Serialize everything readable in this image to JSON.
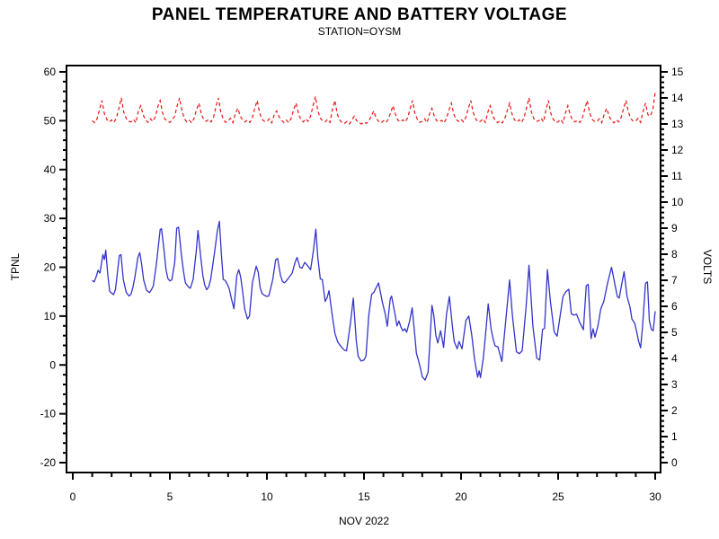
{
  "chart_data": {
    "type": "line",
    "title": "PANEL TEMPERATURE AND BATTERY VOLTAGE",
    "subtitle": "STATION=OYSM",
    "grid": false,
    "legend": "none",
    "frame_color": "#000000",
    "x_axis": {
      "label": "NOV 2022",
      "min": 0,
      "max": 30,
      "major_tick_step": 5,
      "minor_tick_step": 1,
      "tick_labels": [
        "0",
        "5",
        "10",
        "15",
        "20",
        "25",
        "30"
      ]
    },
    "left_axis": {
      "label": "TPNL",
      "min": -20,
      "max": 60,
      "major_tick_step": 10,
      "minor_tick_step": 2,
      "tick_labels": [
        "-20",
        "-10",
        "0",
        "10",
        "20",
        "30",
        "40",
        "50",
        "60"
      ]
    },
    "right_axis": {
      "label": "VOLTS",
      "min": 0,
      "max": 15,
      "major_tick_step": 1,
      "minor_tick_step": 0.2,
      "tick_labels": [
        "0",
        "1",
        "2",
        "3",
        "4",
        "5",
        "6",
        "7",
        "8",
        "9",
        "10",
        "11",
        "12",
        "13",
        "14",
        "15"
      ]
    },
    "series": [
      {
        "name": "panel-temperature",
        "axis": "left",
        "color": "#3333cc",
        "style": "solid",
        "points": [
          [
            1.0,
            17.3
          ],
          [
            1.1,
            17.0
          ],
          [
            1.2,
            18.0
          ],
          [
            1.3,
            19.4
          ],
          [
            1.4,
            18.8
          ],
          [
            1.55,
            22.6
          ],
          [
            1.63,
            21.6
          ],
          [
            1.7,
            23.5
          ],
          [
            1.8,
            18.5
          ],
          [
            1.9,
            15.1
          ],
          [
            2.0,
            14.7
          ],
          [
            2.1,
            14.4
          ],
          [
            2.2,
            15.5
          ],
          [
            2.3,
            19.0
          ],
          [
            2.4,
            22.4
          ],
          [
            2.48,
            22.6
          ],
          [
            2.6,
            17.5
          ],
          [
            2.75,
            14.9
          ],
          [
            2.9,
            14.1
          ],
          [
            3.0,
            14.5
          ],
          [
            3.1,
            16.0
          ],
          [
            3.2,
            18.0
          ],
          [
            3.35,
            22.0
          ],
          [
            3.45,
            23.0
          ],
          [
            3.55,
            20.5
          ],
          [
            3.65,
            17.4
          ],
          [
            3.8,
            15.3
          ],
          [
            3.95,
            14.8
          ],
          [
            4.05,
            15.4
          ],
          [
            4.15,
            16.2
          ],
          [
            4.3,
            20.5
          ],
          [
            4.4,
            24.0
          ],
          [
            4.5,
            27.7
          ],
          [
            4.57,
            27.9
          ],
          [
            4.7,
            23.5
          ],
          [
            4.8,
            19.5
          ],
          [
            4.9,
            17.7
          ],
          [
            5.0,
            17.2
          ],
          [
            5.1,
            17.4
          ],
          [
            5.25,
            21.0
          ],
          [
            5.35,
            28.0
          ],
          [
            5.45,
            28.2
          ],
          [
            5.6,
            22.3
          ],
          [
            5.7,
            19.2
          ],
          [
            5.8,
            16.8
          ],
          [
            5.95,
            16.0
          ],
          [
            6.05,
            15.7
          ],
          [
            6.2,
            17.5
          ],
          [
            6.35,
            23.0
          ],
          [
            6.45,
            27.5
          ],
          [
            6.6,
            21.7
          ],
          [
            6.7,
            18.3
          ],
          [
            6.8,
            16.3
          ],
          [
            6.9,
            15.4
          ],
          [
            7.0,
            16.0
          ],
          [
            7.1,
            17.5
          ],
          [
            7.3,
            23.0
          ],
          [
            7.45,
            27.5
          ],
          [
            7.55,
            29.4
          ],
          [
            7.65,
            23.0
          ],
          [
            7.75,
            17.5
          ],
          [
            7.85,
            17.3
          ],
          [
            7.95,
            16.6
          ],
          [
            8.05,
            15.7
          ],
          [
            8.2,
            13.1
          ],
          [
            8.3,
            11.5
          ],
          [
            8.45,
            18.3
          ],
          [
            8.55,
            19.5
          ],
          [
            8.65,
            18.0
          ],
          [
            8.75,
            15.0
          ],
          [
            8.85,
            11.5
          ],
          [
            9.0,
            9.4
          ],
          [
            9.1,
            10.0
          ],
          [
            9.25,
            16.8
          ],
          [
            9.45,
            20.2
          ],
          [
            9.55,
            19.0
          ],
          [
            9.65,
            15.9
          ],
          [
            9.75,
            14.6
          ],
          [
            9.85,
            14.3
          ],
          [
            10.0,
            14.0
          ],
          [
            10.1,
            14.2
          ],
          [
            10.3,
            17.5
          ],
          [
            10.45,
            21.5
          ],
          [
            10.55,
            21.8
          ],
          [
            10.7,
            18.3
          ],
          [
            10.8,
            17.1
          ],
          [
            10.9,
            16.8
          ],
          [
            11.0,
            17.2
          ],
          [
            11.15,
            18.0
          ],
          [
            11.3,
            18.8
          ],
          [
            11.45,
            21.0
          ],
          [
            11.55,
            22.0
          ],
          [
            11.7,
            20.0
          ],
          [
            11.8,
            19.8
          ],
          [
            11.95,
            21.0
          ],
          [
            12.1,
            20.3
          ],
          [
            12.25,
            19.5
          ],
          [
            12.4,
            23.5
          ],
          [
            12.52,
            27.8
          ],
          [
            12.62,
            22.0
          ],
          [
            12.75,
            17.6
          ],
          [
            12.85,
            17.5
          ],
          [
            13.0,
            13.0
          ],
          [
            13.1,
            13.8
          ],
          [
            13.2,
            15.2
          ],
          [
            13.35,
            10.5
          ],
          [
            13.5,
            6.5
          ],
          [
            13.65,
            4.7
          ],
          [
            13.85,
            3.6
          ],
          [
            14.0,
            3.0
          ],
          [
            14.1,
            2.9
          ],
          [
            14.3,
            8.5
          ],
          [
            14.45,
            13.7
          ],
          [
            14.6,
            5.0
          ],
          [
            14.7,
            1.8
          ],
          [
            14.85,
            0.8
          ],
          [
            15.0,
            1.0
          ],
          [
            15.1,
            1.8
          ],
          [
            15.25,
            10.3
          ],
          [
            15.4,
            14.5
          ],
          [
            15.5,
            14.8
          ],
          [
            15.65,
            16.0
          ],
          [
            15.75,
            16.8
          ],
          [
            15.95,
            12.8
          ],
          [
            16.1,
            10.3
          ],
          [
            16.2,
            7.9
          ],
          [
            16.35,
            13.5
          ],
          [
            16.42,
            14.1
          ],
          [
            16.6,
            10.3
          ],
          [
            16.7,
            8.0
          ],
          [
            16.8,
            9.0
          ],
          [
            16.9,
            7.8
          ],
          [
            17.0,
            7.0
          ],
          [
            17.1,
            7.4
          ],
          [
            17.2,
            6.7
          ],
          [
            17.35,
            9.0
          ],
          [
            17.48,
            11.7
          ],
          [
            17.6,
            6.7
          ],
          [
            17.7,
            2.4
          ],
          [
            17.8,
            1.0
          ],
          [
            17.9,
            -0.5
          ],
          [
            18.0,
            -2.4
          ],
          [
            18.15,
            -3.1
          ],
          [
            18.3,
            -1.5
          ],
          [
            18.4,
            5.0
          ],
          [
            18.5,
            12.2
          ],
          [
            18.6,
            10.0
          ],
          [
            18.7,
            6.1
          ],
          [
            18.8,
            4.5
          ],
          [
            18.95,
            7.0
          ],
          [
            19.1,
            3.6
          ],
          [
            19.25,
            10.4
          ],
          [
            19.4,
            14.0
          ],
          [
            19.55,
            8.0
          ],
          [
            19.65,
            4.8
          ],
          [
            19.8,
            3.3
          ],
          [
            19.9,
            4.8
          ],
          [
            20.05,
            3.3
          ],
          [
            20.25,
            9.1
          ],
          [
            20.4,
            10.0
          ],
          [
            20.55,
            6.1
          ],
          [
            20.7,
            1.1
          ],
          [
            20.85,
            -2.5
          ],
          [
            20.93,
            -1.2
          ],
          [
            21.0,
            -2.6
          ],
          [
            21.15,
            1.5
          ],
          [
            21.3,
            8.0
          ],
          [
            21.4,
            12.5
          ],
          [
            21.55,
            7.3
          ],
          [
            21.65,
            5.4
          ],
          [
            21.75,
            3.9
          ],
          [
            21.9,
            3.7
          ],
          [
            22.1,
            0.7
          ],
          [
            22.3,
            9.0
          ],
          [
            22.5,
            17.4
          ],
          [
            22.65,
            10.0
          ],
          [
            22.85,
            2.7
          ],
          [
            23.0,
            2.3
          ],
          [
            23.15,
            2.9
          ],
          [
            23.35,
            12.0
          ],
          [
            23.5,
            20.4
          ],
          [
            23.7,
            8.0
          ],
          [
            23.9,
            1.4
          ],
          [
            24.05,
            1.0
          ],
          [
            24.2,
            7.3
          ],
          [
            24.3,
            7.5
          ],
          [
            24.45,
            19.5
          ],
          [
            24.6,
            13.0
          ],
          [
            24.8,
            6.7
          ],
          [
            24.95,
            5.9
          ],
          [
            25.1,
            10.0
          ],
          [
            25.25,
            14.0
          ],
          [
            25.4,
            15.0
          ],
          [
            25.55,
            15.5
          ],
          [
            25.68,
            10.5
          ],
          [
            25.8,
            10.2
          ],
          [
            25.95,
            10.4
          ],
          [
            26.1,
            8.8
          ],
          [
            26.3,
            7.2
          ],
          [
            26.45,
            16.2
          ],
          [
            26.55,
            16.5
          ],
          [
            26.7,
            5.4
          ],
          [
            26.8,
            7.4
          ],
          [
            26.9,
            5.7
          ],
          [
            27.05,
            8.0
          ],
          [
            27.2,
            11.5
          ],
          [
            27.35,
            13.0
          ],
          [
            27.55,
            16.8
          ],
          [
            27.75,
            20.0
          ],
          [
            27.85,
            18.0
          ],
          [
            27.95,
            16.0
          ],
          [
            28.05,
            14.0
          ],
          [
            28.15,
            13.7
          ],
          [
            28.25,
            16.0
          ],
          [
            28.4,
            19.1
          ],
          [
            28.55,
            14.0
          ],
          [
            28.7,
            11.9
          ],
          [
            28.8,
            9.4
          ],
          [
            28.95,
            8.5
          ],
          [
            29.05,
            6.7
          ],
          [
            29.15,
            4.8
          ],
          [
            29.25,
            3.5
          ],
          [
            29.35,
            8.0
          ],
          [
            29.5,
            16.7
          ],
          [
            29.6,
            17.0
          ],
          [
            29.7,
            9.1
          ],
          [
            29.8,
            7.3
          ],
          [
            29.9,
            7.0
          ],
          [
            30.0,
            11.0
          ]
        ]
      },
      {
        "name": "battery-voltage",
        "axis": "right",
        "color": "#ee1111",
        "style": "dashed",
        "x_start": 1.0,
        "x_step": 0.125,
        "values": [
          13.12,
          13.05,
          13.2,
          13.55,
          13.9,
          13.4,
          13.18,
          13.08,
          13.15,
          13.06,
          13.25,
          13.6,
          14.0,
          13.45,
          13.22,
          13.1,
          13.08,
          13.18,
          13.04,
          13.5,
          13.7,
          13.35,
          13.15,
          13.06,
          13.2,
          13.1,
          13.28,
          13.65,
          13.9,
          13.42,
          13.18,
          13.12,
          13.06,
          13.16,
          13.3,
          13.7,
          14.0,
          13.5,
          13.2,
          13.08,
          13.14,
          13.04,
          13.22,
          13.55,
          13.8,
          13.38,
          13.16,
          13.1,
          13.18,
          13.08,
          13.26,
          13.68,
          14.0,
          13.45,
          13.2,
          13.06,
          13.12,
          13.22,
          13.05,
          13.4,
          13.6,
          13.3,
          13.15,
          13.08,
          13.16,
          13.06,
          13.24,
          13.6,
          13.9,
          13.42,
          13.18,
          13.1,
          13.1,
          13.2,
          13.04,
          13.35,
          13.5,
          13.28,
          13.14,
          13.06,
          13.15,
          13.05,
          13.22,
          13.55,
          13.8,
          13.4,
          13.16,
          13.08,
          13.2,
          13.1,
          13.3,
          13.7,
          14.05,
          13.5,
          13.22,
          13.12,
          13.08,
          13.18,
          13.06,
          13.55,
          13.9,
          13.38,
          13.15,
          13.05,
          13.02,
          13.1,
          13.0,
          13.15,
          13.3,
          13.12,
          13.05,
          13.0,
          13.08,
          13.02,
          13.12,
          13.3,
          13.5,
          13.22,
          13.1,
          13.04,
          13.12,
          13.05,
          13.18,
          13.45,
          13.7,
          13.35,
          13.14,
          13.08,
          13.16,
          13.08,
          13.24,
          13.58,
          13.9,
          13.4,
          13.18,
          13.06,
          13.1,
          13.2,
          13.05,
          13.38,
          13.6,
          13.3,
          13.12,
          13.08,
          13.14,
          13.04,
          13.22,
          13.52,
          13.8,
          13.38,
          13.16,
          13.1,
          13.18,
          13.08,
          13.26,
          13.6,
          13.9,
          13.44,
          13.2,
          13.08,
          13.1,
          13.2,
          13.06,
          13.45,
          13.7,
          13.32,
          13.15,
          13.05,
          13.12,
          13.04,
          13.2,
          13.5,
          13.8,
          13.38,
          13.16,
          13.08,
          13.16,
          13.06,
          13.26,
          13.62,
          14.0,
          13.46,
          13.2,
          13.1,
          13.12,
          13.22,
          13.08,
          13.55,
          13.9,
          13.4,
          13.18,
          13.06,
          13.08,
          13.18,
          13.04,
          13.42,
          13.7,
          13.34,
          13.14,
          13.08,
          13.14,
          13.06,
          13.24,
          13.58,
          13.9,
          13.42,
          13.18,
          13.1,
          13.1,
          13.2,
          13.05,
          13.38,
          13.6,
          13.3,
          13.12,
          13.04,
          13.16,
          13.08,
          13.26,
          13.6,
          13.9,
          13.44,
          13.2,
          13.1,
          13.12,
          13.22,
          13.06,
          13.48,
          13.8,
          13.36,
          13.3,
          13.55,
          14.2
        ]
      }
    ]
  }
}
